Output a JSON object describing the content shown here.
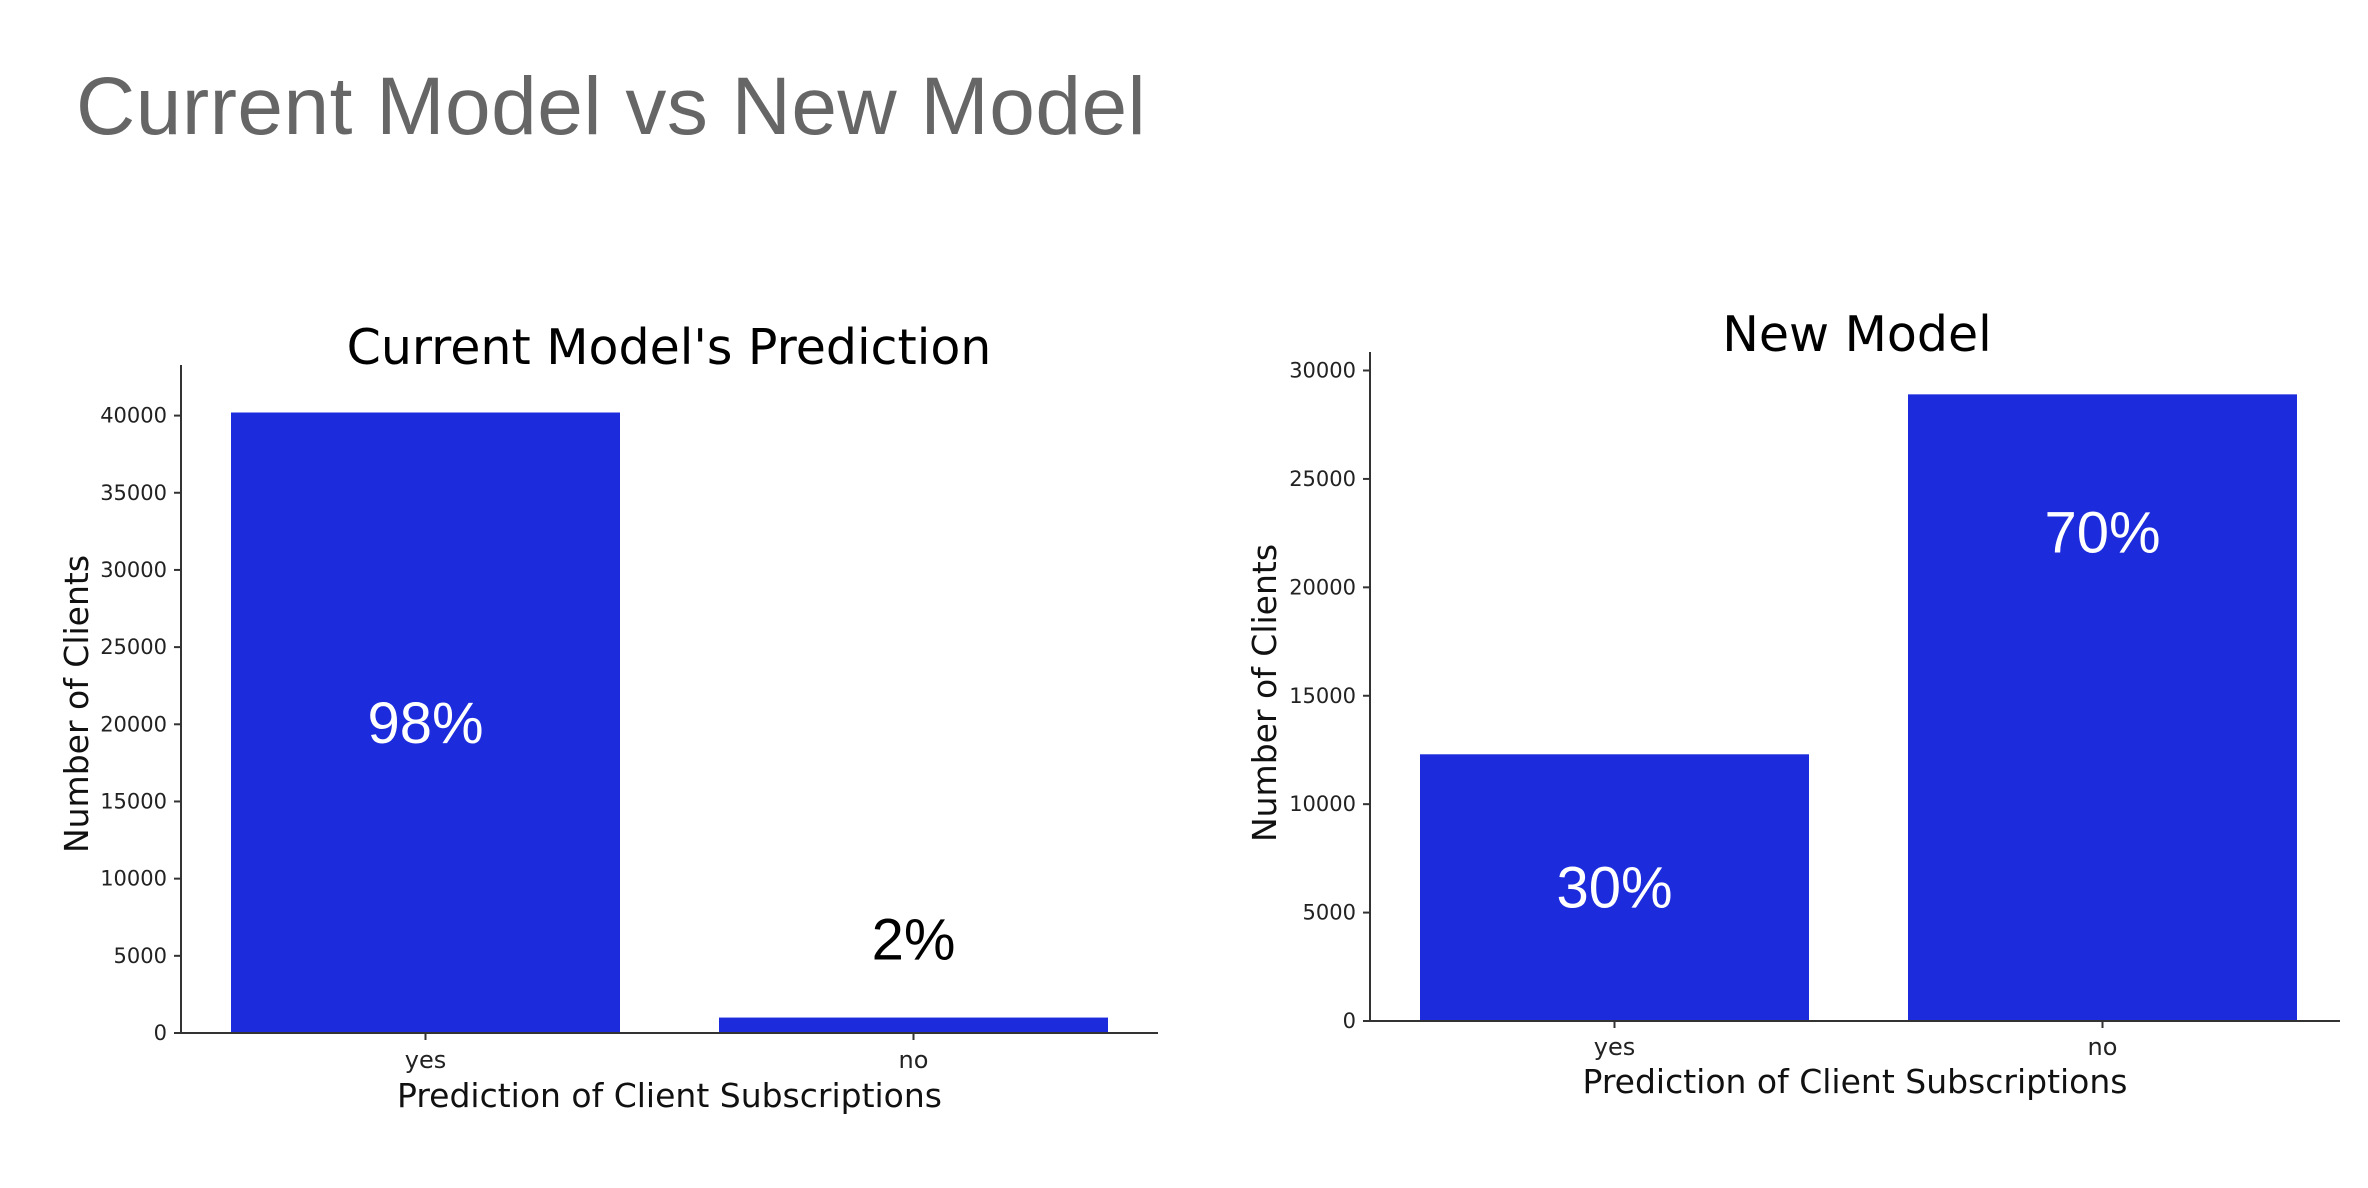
{
  "slide": {
    "title": "Current Model vs New Model"
  },
  "colors": {
    "bar": "#1c2bdc",
    "title_text": "#666666"
  },
  "chart_data": [
    {
      "type": "bar",
      "title": "Current Model's Prediction",
      "xlabel": "Prediction of Client Subscriptions",
      "ylabel": "Number of Clients",
      "categories": [
        "yes",
        "no"
      ],
      "values": [
        40200,
        1000
      ],
      "data_labels": [
        "98%",
        "2%"
      ],
      "ylim": [
        0,
        42500
      ],
      "yticks": [
        0,
        5000,
        10000,
        15000,
        20000,
        25000,
        30000,
        35000,
        40000
      ],
      "grid": false
    },
    {
      "type": "bar",
      "title": "New Model",
      "xlabel": "Prediction of Client Subscriptions",
      "ylabel": "Number of Clients",
      "categories": [
        "yes",
        "no"
      ],
      "values": [
        12300,
        28900
      ],
      "data_labels": [
        "30%",
        "70%"
      ],
      "ylim": [
        0,
        30300
      ],
      "yticks": [
        0,
        5000,
        10000,
        15000,
        20000,
        25000,
        30000
      ],
      "grid": false
    }
  ]
}
